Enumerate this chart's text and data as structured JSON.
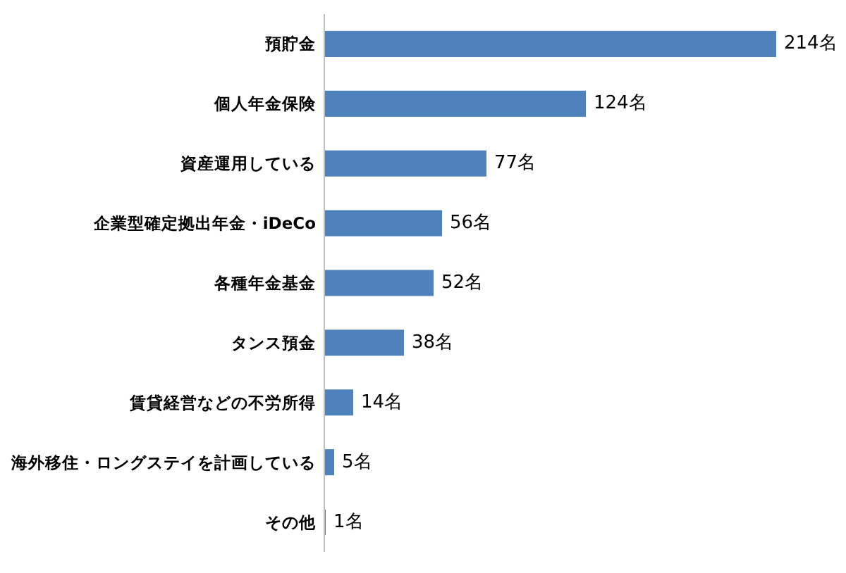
{
  "chart_data": {
    "type": "bar",
    "orientation": "horizontal",
    "categories": [
      "預貯金",
      "個人年金保険",
      "資産運用している",
      "企業型確定拠出年金・iDeCo",
      "各種年金基金",
      "タンス預金",
      "賃貸経営などの不労所得",
      "海外移住・ロングステイを計画している",
      "その他"
    ],
    "values": [
      214,
      124,
      77,
      56,
      52,
      38,
      14,
      5,
      1
    ],
    "value_labels": [
      "214名",
      "124名",
      "77名",
      "56名",
      "52名",
      "38名",
      "14名",
      "5名",
      "1名"
    ],
    "color": "#4f81bd"
  }
}
